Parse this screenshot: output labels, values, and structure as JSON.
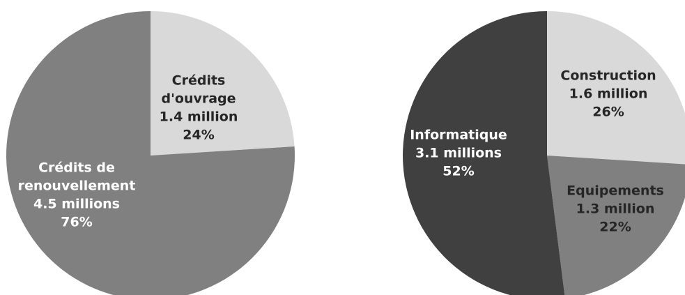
{
  "chart_data": [
    {
      "type": "pie",
      "title": "",
      "start_angle_deg": 0,
      "direction": "clockwise",
      "slices": [
        {
          "label": [
            "Crédits",
            "d'ouvrage",
            "1.4 million",
            "24%"
          ],
          "value": 1.4,
          "percent": 24,
          "color": "#d9d9d9",
          "text_color": "#262626"
        },
        {
          "label": [
            "Crédits de",
            "renouvellement",
            "4.5 millions",
            "76%"
          ],
          "value": 4.5,
          "percent": 76,
          "color": "#808080",
          "text_color": "#ffffff"
        }
      ]
    },
    {
      "type": "pie",
      "title": "",
      "start_angle_deg": 0,
      "direction": "clockwise",
      "slices": [
        {
          "label": [
            "Construction",
            "1.6 million",
            "26%"
          ],
          "value": 1.6,
          "percent": 26,
          "color": "#d9d9d9",
          "text_color": "#262626"
        },
        {
          "label": [
            "Equipements",
            "1.3 million",
            "22%"
          ],
          "value": 1.3,
          "percent": 22,
          "color": "#808080",
          "text_color": "#262626"
        },
        {
          "label": [
            "Informatique",
            "3.1 millions",
            "52%"
          ],
          "value": 3.1,
          "percent": 52,
          "color": "#404040",
          "text_color": "#ffffff"
        }
      ]
    }
  ]
}
